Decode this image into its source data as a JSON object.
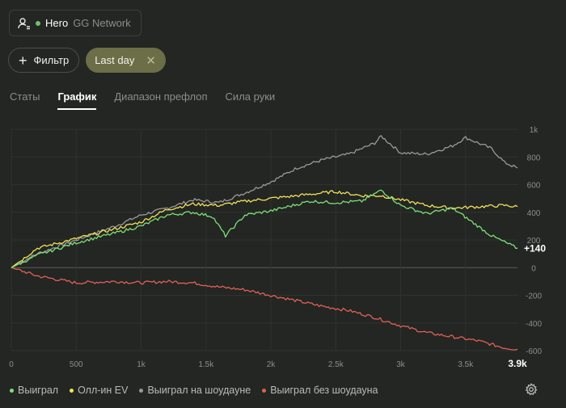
{
  "player": {
    "name": "Hero",
    "network": "GG Network",
    "status_color": "#6ec26a"
  },
  "toolbar": {
    "filter_label": "Фильтр",
    "range_label": "Last day"
  },
  "tabs": [
    {
      "label": "Статы",
      "active": false
    },
    {
      "label": "График",
      "active": true
    },
    {
      "label": "Диапазон префлоп",
      "active": false
    },
    {
      "label": "Сила руки",
      "active": false
    }
  ],
  "legend": [
    {
      "label": "Выиграл",
      "color": "#7ee07a"
    },
    {
      "label": "Олл-ин EV",
      "color": "#f2e15c"
    },
    {
      "label": "Выиграл на шоудауне",
      "color": "#9a9a9a"
    },
    {
      "label": "Выиграл без шоудауна",
      "color": "#e0605a"
    }
  ],
  "chart_data": {
    "type": "line",
    "xlim": [
      0,
      3900
    ],
    "ylim": [
      -600,
      1000
    ],
    "x_ticks": [
      "0",
      "500",
      "1k",
      "1.5k",
      "2k",
      "2.5k",
      "3k",
      "3.5k"
    ],
    "y_ticks": [
      "1k",
      "800",
      "600",
      "400",
      "200",
      "0",
      "-200",
      "-400",
      "-600"
    ],
    "x_end_label": "3.9k",
    "end_value_label": "+140",
    "grid": true,
    "series": [
      {
        "name": "Выиграл",
        "color": "#7ee07a",
        "x": [
          0,
          200,
          500,
          800,
          1000,
          1200,
          1400,
          1550,
          1650,
          1800,
          2000,
          2300,
          2500,
          2700,
          2850,
          3000,
          3200,
          3400,
          3550,
          3700,
          3900
        ],
        "y": [
          0,
          90,
          180,
          250,
          300,
          380,
          400,
          370,
          230,
          380,
          410,
          480,
          470,
          480,
          560,
          450,
          390,
          430,
          330,
          230,
          140
        ]
      },
      {
        "name": "Олл-ин EV",
        "color": "#f2e15c",
        "x": [
          0,
          200,
          500,
          800,
          1000,
          1200,
          1400,
          1600,
          1800,
          2000,
          2300,
          2500,
          2700,
          2850,
          3000,
          3200,
          3400,
          3600,
          3800,
          3900
        ],
        "y": [
          0,
          140,
          210,
          280,
          330,
          420,
          460,
          450,
          480,
          500,
          530,
          550,
          520,
          520,
          490,
          450,
          430,
          440,
          450,
          440
        ]
      },
      {
        "name": "Выиграл на шоудауне",
        "color": "#9a9a9a",
        "x": [
          0,
          200,
          500,
          800,
          1000,
          1200,
          1400,
          1600,
          1800,
          2000,
          2200,
          2400,
          2600,
          2800,
          2850,
          3000,
          3200,
          3400,
          3500,
          3700,
          3800,
          3900
        ],
        "y": [
          0,
          100,
          200,
          300,
          380,
          430,
          490,
          470,
          540,
          620,
          720,
          780,
          820,
          900,
          950,
          830,
          820,
          880,
          940,
          860,
          760,
          720
        ]
      },
      {
        "name": "Выиграл без шоудауна",
        "color": "#e0605a",
        "x": [
          0,
          200,
          500,
          800,
          1000,
          1200,
          1400,
          1600,
          1800,
          2000,
          2200,
          2400,
          2600,
          2800,
          3000,
          3200,
          3400,
          3600,
          3800,
          3900
        ],
        "y": [
          0,
          -60,
          -110,
          -100,
          -110,
          -100,
          -110,
          -140,
          -160,
          -200,
          -240,
          -280,
          -310,
          -360,
          -420,
          -470,
          -500,
          -530,
          -580,
          -590
        ]
      }
    ]
  }
}
